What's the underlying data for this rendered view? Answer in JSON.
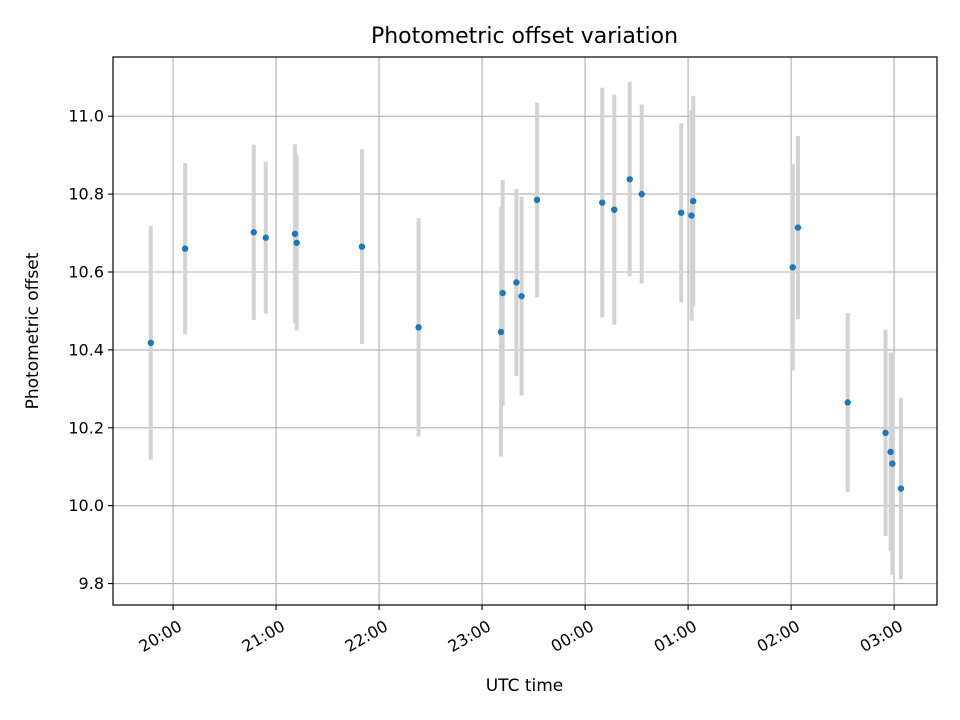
{
  "chart_data": {
    "type": "scatter",
    "title": "Photometric offset variation",
    "xlabel": "UTC time",
    "ylabel": "Photometric offset",
    "x_axis": "time",
    "xlim": [
      "19:25",
      "03:25"
    ],
    "ylim": [
      9.745,
      11.152
    ],
    "grid": true,
    "x_ticks": [
      "20:00",
      "21:00",
      "22:00",
      "23:00",
      "00:00",
      "01:00",
      "02:00",
      "03:00"
    ],
    "y_ticks": [
      "9.8",
      "10.0",
      "10.2",
      "10.4",
      "10.6",
      "10.8",
      "11.0"
    ],
    "colors": {
      "point": "#1f77b4",
      "errorbar": "#d3d3d3",
      "grid": "#b0b0b0"
    },
    "points": [
      {
        "x": "19:47",
        "y": 10.418,
        "err": 0.3
      },
      {
        "x": "20:07",
        "y": 10.66,
        "err": 0.22
      },
      {
        "x": "20:47",
        "y": 10.702,
        "err": 0.225
      },
      {
        "x": "20:54",
        "y": 10.688,
        "err": 0.195
      },
      {
        "x": "21:11",
        "y": 10.698,
        "err": 0.23
      },
      {
        "x": "21:12",
        "y": 10.675,
        "err": 0.225
      },
      {
        "x": "21:50",
        "y": 10.665,
        "err": 0.25
      },
      {
        "x": "22:23",
        "y": 10.458,
        "err": 0.28
      },
      {
        "x": "23:11",
        "y": 10.446,
        "err": 0.32
      },
      {
        "x": "23:12",
        "y": 10.546,
        "err": 0.29
      },
      {
        "x": "23:20",
        "y": 10.573,
        "err": 0.24
      },
      {
        "x": "23:23",
        "y": 10.538,
        "err": 0.255
      },
      {
        "x": "23:32",
        "y": 10.785,
        "err": 0.25
      },
      {
        "x": "00:10",
        "y": 10.778,
        "err": 0.295
      },
      {
        "x": "00:17",
        "y": 10.76,
        "err": 0.295
      },
      {
        "x": "00:26",
        "y": 10.838,
        "err": 0.25
      },
      {
        "x": "00:33",
        "y": 10.8,
        "err": 0.23
      },
      {
        "x": "00:56",
        "y": 10.752,
        "err": 0.23
      },
      {
        "x": "01:02",
        "y": 10.745,
        "err": 0.27
      },
      {
        "x": "01:03",
        "y": 10.782,
        "err": 0.27
      },
      {
        "x": "02:01",
        "y": 10.612,
        "err": 0.265
      },
      {
        "x": "02:04",
        "y": 10.714,
        "err": 0.235
      },
      {
        "x": "02:33",
        "y": 10.265,
        "err": 0.23
      },
      {
        "x": "02:55",
        "y": 10.187,
        "err": 0.265
      },
      {
        "x": "02:58",
        "y": 10.138,
        "err": 0.255
      },
      {
        "x": "02:59",
        "y": 10.108,
        "err": 0.285
      },
      {
        "x": "03:04",
        "y": 10.044,
        "err": 0.233
      }
    ]
  }
}
